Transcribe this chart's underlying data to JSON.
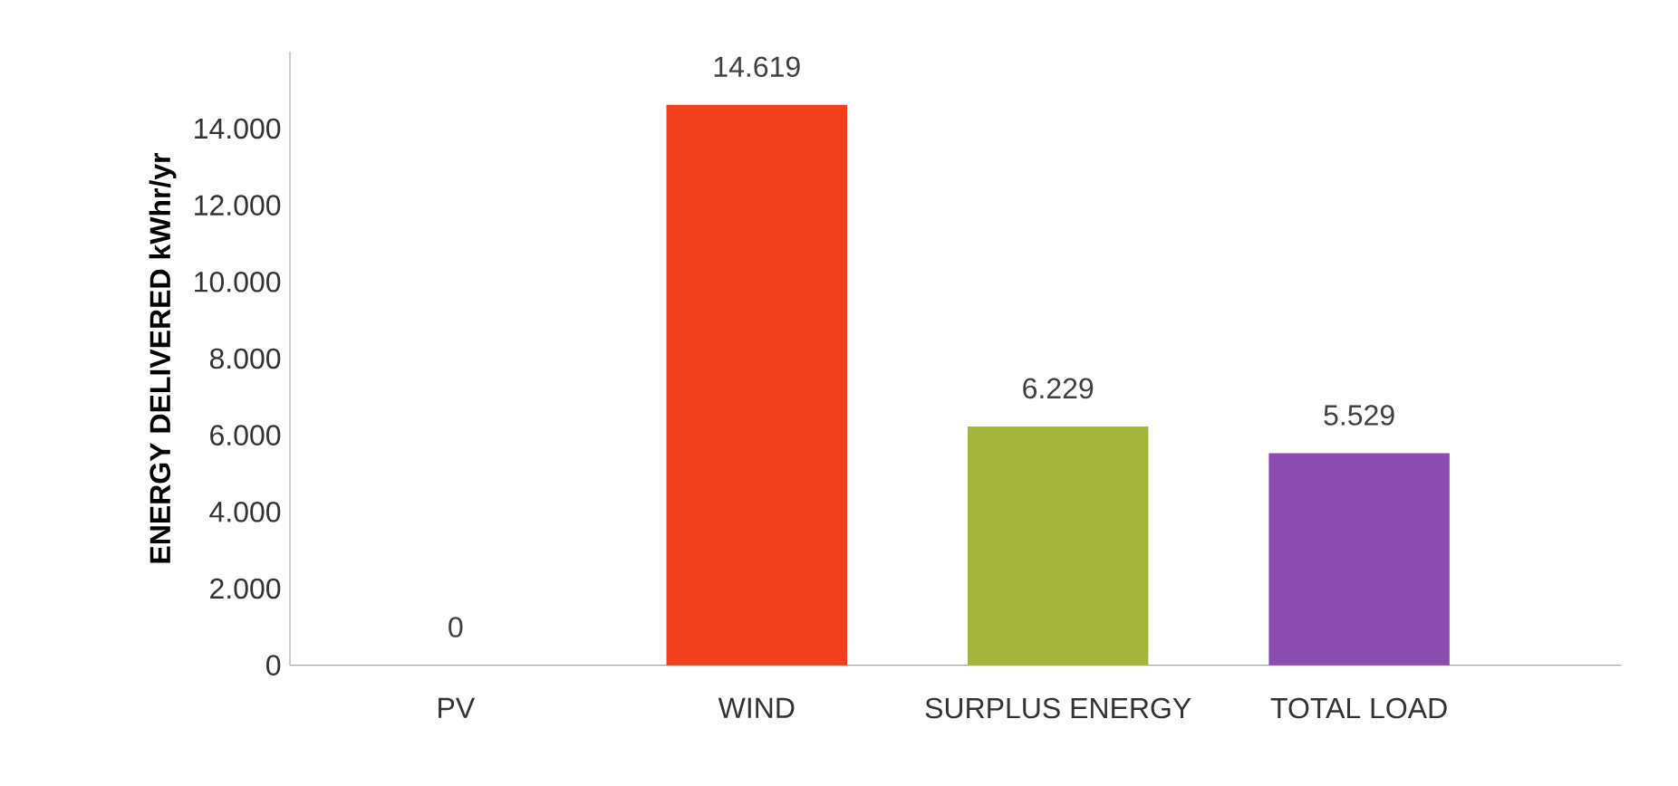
{
  "chart_data": {
    "type": "bar",
    "ylabel": "ENERGY DELIVERED kWhr/yr",
    "categories": [
      "PV",
      "WIND",
      "SURPLUS ENERGY",
      "TOTAL LOAD"
    ],
    "values": [
      0,
      14619,
      6229,
      5529
    ],
    "value_labels": [
      "0",
      "14.619",
      "6.229",
      "5.529"
    ],
    "colors": [
      "#7f7f7f",
      "#f0401e",
      "#a3b53a",
      "#8a4cb0"
    ],
    "ylim": [
      0,
      16000
    ],
    "yticks": [
      {
        "value": 0,
        "label": "0"
      },
      {
        "value": 2000,
        "label": "2.000"
      },
      {
        "value": 4000,
        "label": "4.000"
      },
      {
        "value": 6000,
        "label": "6.000"
      },
      {
        "value": 8000,
        "label": "8.000"
      },
      {
        "value": 10000,
        "label": "10.000"
      },
      {
        "value": 12000,
        "label": "12.000"
      },
      {
        "value": 14000,
        "label": "14.000"
      }
    ],
    "grid": false
  }
}
